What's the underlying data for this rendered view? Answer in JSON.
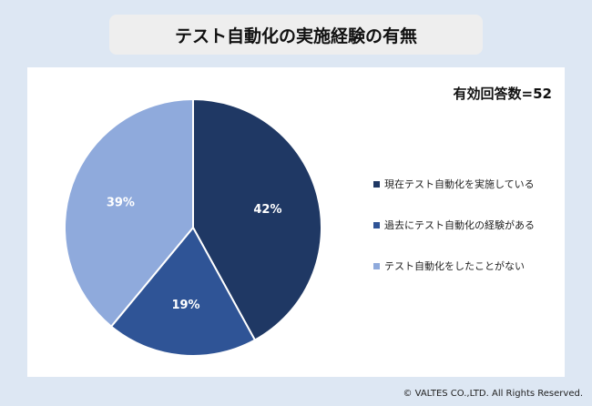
{
  "title": "テスト自動化の実施経験の有無",
  "respondents": "有効回答数=52",
  "copyright": "© VALTES CO.,LTD. All Rights Reserved.",
  "chart_data": {
    "type": "pie",
    "slices": [
      {
        "name": "現在テスト自動化を実施している",
        "value": 42,
        "label": "42%",
        "color": "#1f3864"
      },
      {
        "name": "過去にテスト自動化の経験がある",
        "value": 19,
        "label": "19%",
        "color": "#2f5496"
      },
      {
        "name": "テスト自動化をしたことがない",
        "value": 39,
        "label": "39%",
        "color": "#8faadc"
      }
    ],
    "start_angle": "12 o'clock",
    "direction": "clockwise",
    "legend_position": "right"
  }
}
